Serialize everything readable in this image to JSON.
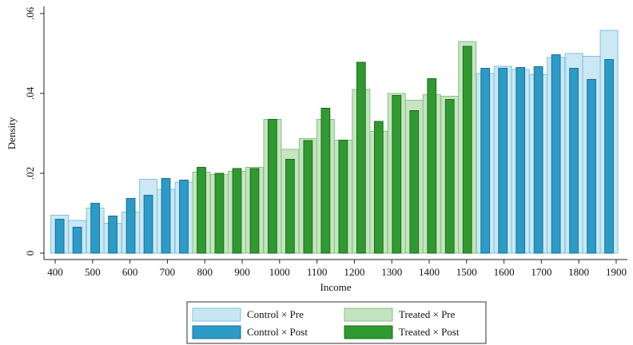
{
  "chart_data": {
    "type": "bar",
    "x_label": "Income",
    "y_label": "Density",
    "x": [
      412,
      459,
      507,
      554,
      602,
      649,
      696,
      744,
      791,
      839,
      886,
      933,
      981,
      1028,
      1076,
      1123,
      1170,
      1218,
      1265,
      1313,
      1360,
      1407,
      1455,
      1502,
      1550,
      1597,
      1644,
      1692,
      1739,
      1787,
      1834,
      1881
    ],
    "series": [
      {
        "name": "Control × Pre",
        "color": "#c8e7f3",
        "values": [
          0.0095,
          0.0082,
          0.0113,
          0.0075,
          0.0103,
          0.0185,
          0.016,
          0.0178,
          null,
          null,
          null,
          null,
          null,
          null,
          null,
          null,
          null,
          null,
          null,
          null,
          null,
          null,
          null,
          null,
          0.045,
          0.0468,
          0.046,
          0.0447,
          0.049,
          0.05,
          0.0493,
          0.0558
        ]
      },
      {
        "name": "Treated × Pre",
        "color": "#c4e3c0",
        "values": [
          null,
          null,
          null,
          null,
          null,
          null,
          null,
          null,
          0.0203,
          0.0197,
          0.0205,
          0.0215,
          0.0335,
          0.026,
          0.0287,
          0.0335,
          0.0283,
          0.041,
          0.0305,
          0.04,
          0.0383,
          0.0397,
          0.0393,
          0.053,
          null,
          null,
          null,
          null,
          null,
          null,
          null,
          null
        ]
      },
      {
        "name": "Control × Post",
        "color": "#2b9bc8",
        "values": [
          0.0085,
          0.0065,
          0.0125,
          0.0093,
          0.0137,
          0.0145,
          0.0187,
          0.0183,
          null,
          null,
          null,
          null,
          null,
          null,
          null,
          null,
          null,
          null,
          null,
          null,
          null,
          null,
          null,
          null,
          0.0463,
          0.0463,
          0.0465,
          0.0467,
          0.0497,
          0.0463,
          0.0435,
          0.0485
        ]
      },
      {
        "name": "Treated × Post",
        "color": "#2f9a2f",
        "values": [
          null,
          null,
          null,
          null,
          null,
          null,
          null,
          null,
          0.0215,
          0.02,
          0.0212,
          0.0212,
          0.0335,
          0.0235,
          0.0282,
          0.0363,
          0.0283,
          0.0478,
          0.033,
          0.0395,
          0.0357,
          0.0437,
          0.0385,
          0.0518,
          null,
          null,
          null,
          null,
          null,
          null,
          null,
          null
        ]
      }
    ],
    "xlim": [
      370,
      1930
    ],
    "ylim": [
      -0.0016,
      0.0618
    ],
    "xticks": [
      400,
      500,
      600,
      700,
      800,
      900,
      1000,
      1100,
      1200,
      1300,
      1400,
      1500,
      1600,
      1700,
      1800,
      1900
    ],
    "yticks": [
      0,
      {
        "value": 0.02,
        "label": ".02"
      },
      {
        "value": 0.04,
        "label": ".04"
      },
      {
        "value": 0.06,
        "label": ".06"
      }
    ],
    "legend": "bottom"
  }
}
